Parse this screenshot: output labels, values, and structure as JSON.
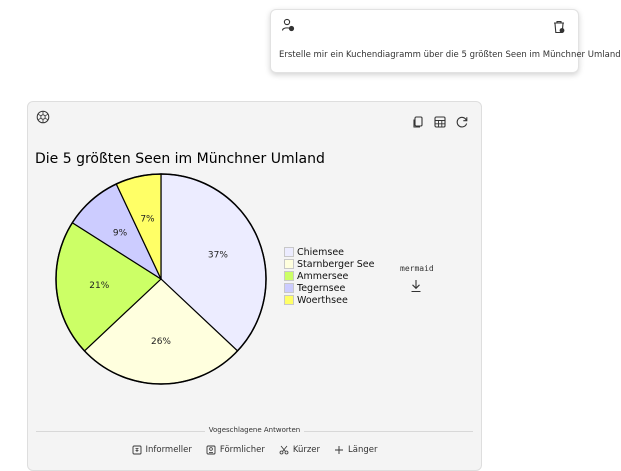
{
  "prompt": {
    "text": "Erstelle mir ein Kuchendiagramm über die 5 größten Seen im Münchner Umland",
    "user_icon": "user-icon",
    "delete_icon": "trash-icon"
  },
  "answer": {
    "toolbar": [
      "copy-icon",
      "table-icon",
      "refresh-icon"
    ],
    "mermaid_label": "mermaid",
    "suggestions_title": "Vogeschlagene Antworten",
    "suggestions": [
      {
        "label": "Informeller",
        "icon": "informal-icon"
      },
      {
        "label": "Förmlicher",
        "icon": "formal-icon"
      },
      {
        "label": "Kürzer",
        "icon": "scissors-icon"
      },
      {
        "label": "Länger",
        "icon": "plus-icon"
      }
    ]
  },
  "chart_data": {
    "type": "pie",
    "title": "Die 5 größten Seen im Münchner Umland",
    "categories": [
      "Chiemsee",
      "Starnberger See",
      "Ammersee",
      "Tegernsee",
      "Woerthsee"
    ],
    "values": [
      37,
      26,
      21,
      9,
      7
    ],
    "labels": [
      "37%",
      "26%",
      "21%",
      "9%",
      "7%"
    ],
    "colors": [
      "#ececff",
      "#ffffde",
      "#ccff66",
      "#ccccff",
      "#ffff66"
    ],
    "legend": "right"
  }
}
